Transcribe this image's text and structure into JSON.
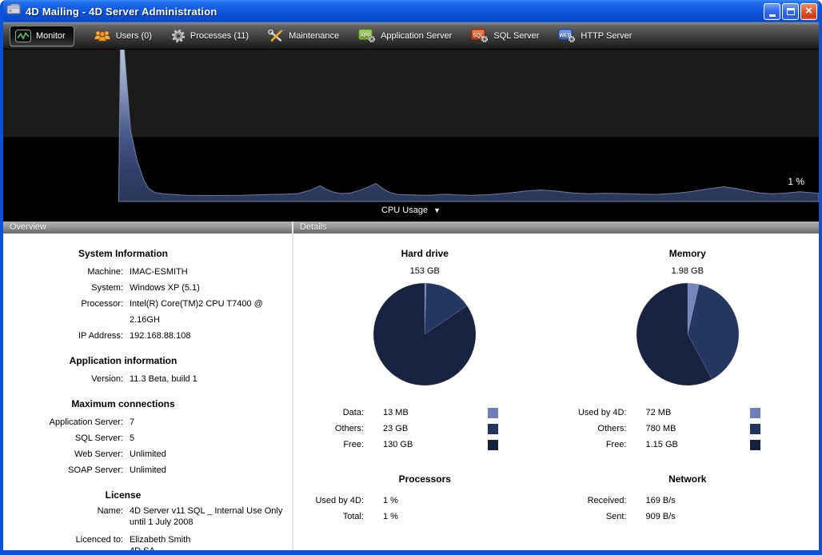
{
  "window": {
    "title": "4D Mailing - 4D Server Administration",
    "controls": {
      "close_glyph": "×"
    }
  },
  "toolbar": {
    "monitor": "Monitor",
    "users": "Users (0)",
    "processes": "Processes (11)",
    "maintenance": "Maintenance",
    "app_server": "Application Server",
    "sql_server": "SQL Server",
    "http_server": "HTTP Server",
    "badges": {
      "app": "APP",
      "sql": "SQL",
      "web": "WEB"
    }
  },
  "graph": {
    "selector": "CPU Usage",
    "caret": "▼",
    "current": "1 %"
  },
  "overview": {
    "header": "Overview",
    "system": {
      "title": "System Information",
      "rows": [
        {
          "label": "Machine:",
          "value": "IMAC-ESMITH"
        },
        {
          "label": "System:",
          "value": "Windows XP (5.1)"
        },
        {
          "label": "Processor:",
          "value": "Intel(R) Core(TM)2 CPU T7400 @ 2.16GH"
        },
        {
          "label": "IP Address:",
          "value": "192.168.88.108"
        }
      ]
    },
    "application": {
      "title": "Application information",
      "rows": [
        {
          "label": "Version:",
          "value": "11.3 Beta, build 1"
        }
      ]
    },
    "connections": {
      "title": "Maximum connections",
      "rows": [
        {
          "label": "Application Server:",
          "value": "7"
        },
        {
          "label": "SQL Server:",
          "value": "5"
        },
        {
          "label": "Web Server:",
          "value": "Unlimited"
        },
        {
          "label": "SOAP Server:",
          "value": "Unlimited"
        }
      ]
    },
    "license": {
      "title": "License",
      "rows": [
        {
          "label": "Name:",
          "value": "4D Server v11 SQL _ Internal Use Only",
          "value2": "until 1 July 2008"
        },
        {
          "label": "Licenced to:",
          "value": "Elizabeth Smith",
          "value2": "4D SA"
        }
      ]
    }
  },
  "details": {
    "header": "Details",
    "hard_drive": {
      "title": "Hard drive",
      "total": "153 GB",
      "rows": [
        {
          "label": "Data:",
          "value": "13 MB",
          "color": "#6e80ba"
        },
        {
          "label": "Others:",
          "value": "23 GB",
          "color": "#22345d"
        },
        {
          "label": "Free:",
          "value": "130 GB",
          "color": "#16223f"
        }
      ]
    },
    "memory": {
      "title": "Memory",
      "total": "1.98 GB",
      "rows": [
        {
          "label": "Used by 4D:",
          "value": "72 MB",
          "color": "#6e80ba"
        },
        {
          "label": "Others:",
          "value": "780 MB",
          "color": "#22345d"
        },
        {
          "label": "Free:",
          "value": "1.15 GB",
          "color": "#16223f"
        }
      ]
    },
    "processors": {
      "title": "Processors",
      "rows": [
        {
          "label": "Used by 4D:",
          "value": "1 %"
        },
        {
          "label": "Total:",
          "value": "1 %"
        }
      ]
    },
    "network": {
      "title": "Network",
      "rows": [
        {
          "label": "Received:",
          "value": "169 B/s"
        },
        {
          "label": "Sent:",
          "value": "909 B/s"
        }
      ]
    }
  },
  "chart_data": [
    {
      "type": "area",
      "title": "CPU Usage",
      "unit": "%",
      "ylim": [
        0,
        100
      ],
      "current_value": 1,
      "legend_position": "none",
      "grid": false,
      "fill_gradient": [
        "#bac4da",
        "#8b9abf",
        "#49598a",
        "#293757"
      ],
      "points": [
        [
          145,
          0
        ],
        [
          147,
          100
        ],
        [
          152,
          100
        ],
        [
          160,
          45
        ],
        [
          168,
          25
        ],
        [
          176,
          12
        ],
        [
          182,
          6
        ],
        [
          190,
          3
        ],
        [
          200,
          2
        ],
        [
          230,
          1
        ],
        [
          260,
          0.8
        ],
        [
          300,
          1
        ],
        [
          330,
          1.5
        ],
        [
          355,
          1.8
        ],
        [
          370,
          2.2
        ],
        [
          386,
          4.5
        ],
        [
          398,
          7.5
        ],
        [
          406,
          5
        ],
        [
          414,
          3.2
        ],
        [
          424,
          2.2
        ],
        [
          436,
          2.5
        ],
        [
          450,
          4.8
        ],
        [
          468,
          9
        ],
        [
          478,
          5
        ],
        [
          486,
          2.8
        ],
        [
          495,
          1.6
        ],
        [
          515,
          1.2
        ],
        [
          535,
          1
        ],
        [
          555,
          1.8
        ],
        [
          570,
          1.2
        ],
        [
          590,
          1
        ],
        [
          610,
          1.4
        ],
        [
          635,
          2.6
        ],
        [
          655,
          3.8
        ],
        [
          675,
          4.6
        ],
        [
          695,
          3.8
        ],
        [
          715,
          2.6
        ],
        [
          735,
          2
        ],
        [
          755,
          2.4
        ],
        [
          775,
          2.2
        ],
        [
          800,
          1.8
        ],
        [
          820,
          1.6
        ],
        [
          845,
          2.4
        ],
        [
          865,
          3.6
        ],
        [
          885,
          5.4
        ],
        [
          905,
          6.8
        ],
        [
          920,
          5.6
        ],
        [
          935,
          4
        ],
        [
          950,
          2.6
        ],
        [
          965,
          2
        ],
        [
          980,
          2.4
        ],
        [
          1000,
          3.4
        ],
        [
          1012,
          2.8
        ],
        [
          1024,
          2.4
        ]
      ]
    },
    {
      "type": "pie",
      "title": "Hard drive",
      "total_label": "153 GB",
      "slices": [
        {
          "label": "Data",
          "value": "13 MB",
          "deg": 2,
          "color": "#7685bb"
        },
        {
          "label": "Others",
          "value": "23 GB",
          "deg": 54,
          "color": "#243761"
        },
        {
          "label": "Free",
          "value": "130 GB",
          "deg": 304,
          "color": "#172340"
        }
      ]
    },
    {
      "type": "pie",
      "title": "Memory",
      "total_label": "1.98 GB",
      "slices": [
        {
          "label": "Used by 4D",
          "value": "72 MB",
          "deg": 13,
          "color": "#7685bb"
        },
        {
          "label": "Others",
          "value": "780 MB",
          "deg": 138.5,
          "color": "#243761"
        },
        {
          "label": "Free",
          "value": "1.15 GB",
          "deg": 208.5,
          "color": "#172340"
        }
      ]
    }
  ],
  "colors": {
    "accent_blue": "#0c52d8",
    "pie_light": "#6e80ba",
    "pie_mid": "#22345d",
    "pie_dark": "#16223f"
  }
}
